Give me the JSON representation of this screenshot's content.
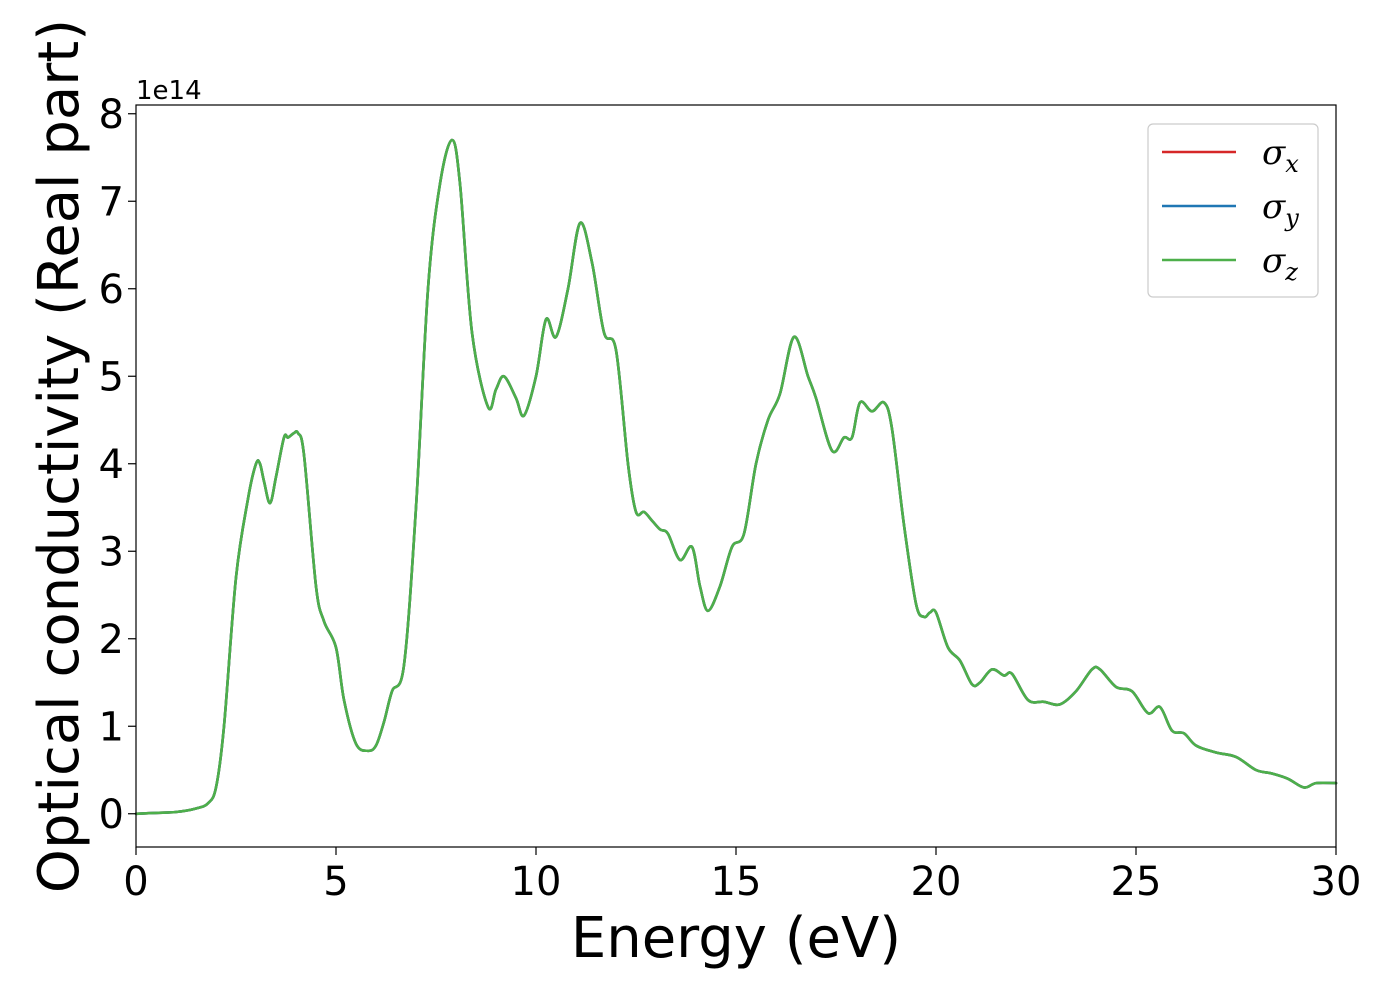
{
  "chart_data": {
    "type": "line",
    "title": "",
    "xlabel": "Energy (eV)",
    "ylabel": "Optical conductivity (Real part)",
    "y_offset_label": "1e14",
    "xlim": [
      0,
      30
    ],
    "ylim": [
      -0.38,
      8.1
    ],
    "xticks": [
      0,
      5,
      10,
      15,
      20,
      25,
      30
    ],
    "yticks": [
      0,
      1,
      2,
      3,
      4,
      5,
      6,
      7,
      8
    ],
    "grid": false,
    "legend_position": "top-right",
    "x": [
      0,
      0.5,
      1.0,
      1.5,
      1.8,
      2.0,
      2.2,
      2.5,
      2.8,
      3.0,
      3.1,
      3.2,
      3.35,
      3.5,
      3.7,
      3.8,
      3.95,
      4.05,
      4.2,
      4.5,
      4.7,
      5.0,
      5.2,
      5.5,
      5.8,
      6.0,
      6.2,
      6.4,
      6.7,
      7.0,
      7.3,
      7.6,
      7.9,
      8.1,
      8.4,
      8.8,
      9.0,
      9.2,
      9.5,
      9.7,
      10.0,
      10.25,
      10.5,
      10.8,
      11.1,
      11.4,
      11.7,
      12.0,
      12.3,
      12.5,
      12.7,
      12.9,
      13.1,
      13.3,
      13.6,
      13.9,
      14.1,
      14.3,
      14.6,
      14.9,
      15.2,
      15.5,
      15.8,
      16.1,
      16.45,
      16.8,
      17.0,
      17.4,
      17.7,
      17.9,
      18.1,
      18.4,
      18.7,
      18.9,
      19.2,
      19.5,
      19.7,
      19.85,
      20.0,
      20.3,
      20.6,
      20.9,
      21.1,
      21.4,
      21.7,
      21.9,
      22.3,
      22.7,
      23.1,
      23.5,
      23.9,
      24.1,
      24.5,
      24.9,
      25.3,
      25.6,
      25.9,
      26.2,
      26.5,
      27.0,
      27.5,
      28.0,
      28.4,
      28.8,
      29.2,
      29.5,
      30.0
    ],
    "series": [
      {
        "name": "σx",
        "color": "#d62728",
        "values": [
          0.0,
          0.01,
          0.02,
          0.06,
          0.12,
          0.3,
          1.0,
          2.7,
          3.6,
          4.0,
          4.0,
          3.8,
          3.55,
          3.85,
          4.3,
          4.3,
          4.35,
          4.35,
          4.1,
          2.6,
          2.2,
          1.9,
          1.3,
          0.8,
          0.72,
          0.78,
          1.05,
          1.4,
          1.7,
          3.5,
          6.0,
          7.2,
          7.7,
          7.2,
          5.5,
          4.65,
          4.85,
          5.0,
          4.75,
          4.55,
          5.0,
          5.65,
          5.45,
          6.0,
          6.75,
          6.3,
          5.5,
          5.3,
          4.0,
          3.45,
          3.45,
          3.35,
          3.25,
          3.2,
          2.9,
          3.05,
          2.6,
          2.32,
          2.6,
          3.05,
          3.2,
          4.0,
          4.5,
          4.8,
          5.45,
          5.0,
          4.75,
          4.15,
          4.3,
          4.3,
          4.7,
          4.6,
          4.7,
          4.4,
          3.3,
          2.4,
          2.25,
          2.3,
          2.3,
          1.9,
          1.75,
          1.48,
          1.5,
          1.65,
          1.58,
          1.6,
          1.3,
          1.28,
          1.25,
          1.4,
          1.65,
          1.65,
          1.45,
          1.4,
          1.15,
          1.22,
          0.95,
          0.92,
          0.78,
          0.7,
          0.65,
          0.5,
          0.46,
          0.4,
          0.3,
          0.35,
          0.35
        ]
      },
      {
        "name": "σy",
        "color": "#1f77b4",
        "values": [
          0.0,
          0.01,
          0.02,
          0.06,
          0.12,
          0.3,
          1.0,
          2.7,
          3.6,
          4.0,
          4.0,
          3.8,
          3.55,
          3.85,
          4.3,
          4.3,
          4.35,
          4.35,
          4.1,
          2.6,
          2.2,
          1.9,
          1.3,
          0.8,
          0.72,
          0.78,
          1.05,
          1.4,
          1.7,
          3.5,
          6.0,
          7.2,
          7.7,
          7.2,
          5.5,
          4.65,
          4.85,
          5.0,
          4.75,
          4.55,
          5.0,
          5.65,
          5.45,
          6.0,
          6.75,
          6.3,
          5.5,
          5.3,
          4.0,
          3.45,
          3.45,
          3.35,
          3.25,
          3.2,
          2.9,
          3.05,
          2.6,
          2.32,
          2.6,
          3.05,
          3.2,
          4.0,
          4.5,
          4.8,
          5.45,
          5.0,
          4.75,
          4.15,
          4.3,
          4.3,
          4.7,
          4.6,
          4.7,
          4.4,
          3.3,
          2.4,
          2.25,
          2.3,
          2.3,
          1.9,
          1.75,
          1.48,
          1.5,
          1.65,
          1.58,
          1.6,
          1.3,
          1.28,
          1.25,
          1.4,
          1.65,
          1.65,
          1.45,
          1.4,
          1.15,
          1.22,
          0.95,
          0.92,
          0.78,
          0.7,
          0.65,
          0.5,
          0.46,
          0.4,
          0.3,
          0.35,
          0.35
        ]
      },
      {
        "name": "σz",
        "color": "#4daf4a",
        "values": [
          0.0,
          0.01,
          0.02,
          0.06,
          0.12,
          0.3,
          1.0,
          2.7,
          3.6,
          4.0,
          4.0,
          3.8,
          3.55,
          3.85,
          4.3,
          4.3,
          4.35,
          4.35,
          4.1,
          2.6,
          2.2,
          1.9,
          1.3,
          0.8,
          0.72,
          0.78,
          1.05,
          1.4,
          1.7,
          3.5,
          6.0,
          7.2,
          7.7,
          7.2,
          5.5,
          4.65,
          4.85,
          5.0,
          4.75,
          4.55,
          5.0,
          5.65,
          5.45,
          6.0,
          6.75,
          6.3,
          5.5,
          5.3,
          4.0,
          3.45,
          3.45,
          3.35,
          3.25,
          3.2,
          2.9,
          3.05,
          2.6,
          2.32,
          2.6,
          3.05,
          3.2,
          4.0,
          4.5,
          4.8,
          5.45,
          5.0,
          4.75,
          4.15,
          4.3,
          4.3,
          4.7,
          4.6,
          4.7,
          4.4,
          3.3,
          2.4,
          2.25,
          2.3,
          2.3,
          1.9,
          1.75,
          1.48,
          1.5,
          1.65,
          1.58,
          1.6,
          1.3,
          1.28,
          1.25,
          1.4,
          1.65,
          1.65,
          1.45,
          1.4,
          1.15,
          1.22,
          0.95,
          0.92,
          0.78,
          0.7,
          0.65,
          0.5,
          0.46,
          0.4,
          0.3,
          0.35,
          0.35
        ]
      }
    ],
    "legend": [
      {
        "symbol": "σ",
        "sub": "x",
        "color": "#d62728"
      },
      {
        "symbol": "σ",
        "sub": "y",
        "color": "#1f77b4"
      },
      {
        "symbol": "σ",
        "sub": "z",
        "color": "#4daf4a"
      }
    ]
  }
}
